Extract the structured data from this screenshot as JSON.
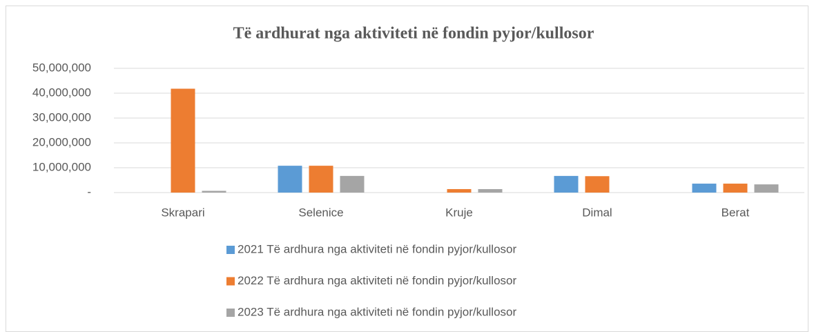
{
  "chart_data": {
    "type": "bar",
    "title": "Të ardhurat nga aktiviteti në fondin pyjor/kullosor",
    "categories": [
      "Skrapari",
      "Selenice",
      "Kruje",
      "Dimal",
      "Berat"
    ],
    "series": [
      {
        "name": "2021 Të ardhura nga aktiviteti në fondin pyjor/kullosor",
        "color": "#5b9bd5",
        "values": [
          0,
          10800000,
          0,
          6700000,
          3600000
        ]
      },
      {
        "name": "2022 Të ardhura nga aktiviteti në fondin pyjor/kullosor",
        "color": "#ed7d31",
        "values": [
          41800000,
          10800000,
          1400000,
          6600000,
          3600000
        ]
      },
      {
        "name": "2023 Të ardhura nga aktiviteti në fondin pyjor/kullosor",
        "color": "#a5a5a5",
        "values": [
          700000,
          6700000,
          1400000,
          0,
          3300000
        ]
      }
    ],
    "ylim": [
      0,
      50000000
    ],
    "yticks": [
      {
        "value": 0,
        "label": "-"
      },
      {
        "value": 10000000,
        "label": "10,000,000"
      },
      {
        "value": 20000000,
        "label": "20,000,000"
      },
      {
        "value": 30000000,
        "label": "30,000,000"
      },
      {
        "value": 40000000,
        "label": "40,000,000"
      },
      {
        "value": 50000000,
        "label": "50,000,000"
      }
    ],
    "grid": true
  }
}
